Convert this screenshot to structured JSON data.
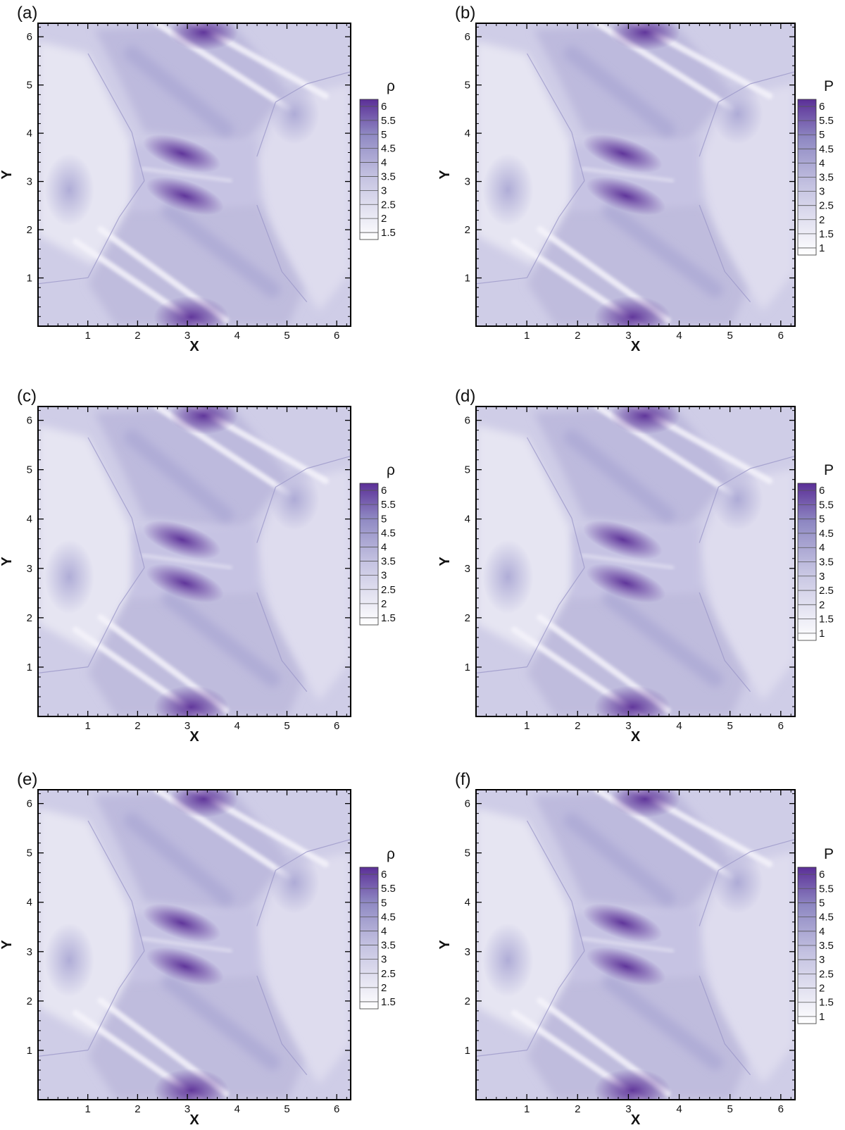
{
  "figure": {
    "panels": [
      {
        "label": "(a)",
        "variable": "ρ"
      },
      {
        "label": "(b)",
        "variable": "P"
      },
      {
        "label": "(c)",
        "variable": "ρ"
      },
      {
        "label": "(d)",
        "variable": "P"
      },
      {
        "label": "(e)",
        "variable": "ρ"
      },
      {
        "label": "(f)",
        "variable": "P"
      }
    ]
  },
  "colors": {
    "low": "#f3f2f9",
    "mid": "#a6a3d2",
    "high": "#5b2f97"
  },
  "chart_data": [
    {
      "type": "heatmap",
      "title": "",
      "panel_label": "(a)",
      "colorbar_title": "ρ",
      "xlabel": "X",
      "ylabel": "Y",
      "xlim": [
        0,
        6.28
      ],
      "ylim": [
        0,
        6.28
      ],
      "x_ticks": [
        1,
        2,
        3,
        4,
        5,
        6
      ],
      "y_ticks": [
        1,
        2,
        3,
        4,
        5,
        6
      ],
      "colorbar_ticks": [
        "1.5",
        "2",
        "2.5",
        "3",
        "3.5",
        "4",
        "4.5",
        "5",
        "5.5",
        "6"
      ],
      "colorbar_range": [
        1.25,
        6.25
      ]
    },
    {
      "type": "heatmap",
      "title": "",
      "panel_label": "(b)",
      "colorbar_title": "P",
      "xlabel": "X",
      "ylabel": "Y",
      "xlim": [
        0,
        6.28
      ],
      "ylim": [
        0,
        6.28
      ],
      "x_ticks": [
        1,
        2,
        3,
        4,
        5,
        6
      ],
      "y_ticks": [
        1,
        2,
        3,
        4,
        5,
        6
      ],
      "colorbar_ticks": [
        "1",
        "1.5",
        "2",
        "2.5",
        "3",
        "3.5",
        "4",
        "4.5",
        "5",
        "5.5",
        "6"
      ],
      "colorbar_range": [
        0.75,
        6.25
      ]
    },
    {
      "type": "heatmap",
      "title": "",
      "panel_label": "(c)",
      "colorbar_title": "ρ",
      "xlabel": "X",
      "ylabel": "Y",
      "xlim": [
        0,
        6.28
      ],
      "ylim": [
        0,
        6.28
      ],
      "x_ticks": [
        1,
        2,
        3,
        4,
        5,
        6
      ],
      "y_ticks": [
        1,
        2,
        3,
        4,
        5,
        6
      ],
      "colorbar_ticks": [
        "1.5",
        "2",
        "2.5",
        "3",
        "3.5",
        "4",
        "4.5",
        "5",
        "5.5",
        "6"
      ],
      "colorbar_range": [
        1.25,
        6.25
      ]
    },
    {
      "type": "heatmap",
      "title": "",
      "panel_label": "(d)",
      "colorbar_title": "P",
      "xlabel": "X",
      "ylabel": "Y",
      "xlim": [
        0,
        6.28
      ],
      "ylim": [
        0,
        6.28
      ],
      "x_ticks": [
        1,
        2,
        3,
        4,
        5,
        6
      ],
      "y_ticks": [
        1,
        2,
        3,
        4,
        5,
        6
      ],
      "colorbar_ticks": [
        "1",
        "1.5",
        "2",
        "2.5",
        "3",
        "3.5",
        "4",
        "4.5",
        "5",
        "5.5",
        "6"
      ],
      "colorbar_range": [
        0.75,
        6.25
      ]
    },
    {
      "type": "heatmap",
      "title": "",
      "panel_label": "(e)",
      "colorbar_title": "ρ",
      "xlabel": "X",
      "ylabel": "Y",
      "xlim": [
        0,
        6.28
      ],
      "ylim": [
        0,
        6.28
      ],
      "x_ticks": [
        1,
        2,
        3,
        4,
        5,
        6
      ],
      "y_ticks": [
        1,
        2,
        3,
        4,
        5,
        6
      ],
      "colorbar_ticks": [
        "1.5",
        "2",
        "2.5",
        "3",
        "3.5",
        "4",
        "4.5",
        "5",
        "5.5",
        "6"
      ],
      "colorbar_range": [
        1.25,
        6.25
      ]
    },
    {
      "type": "heatmap",
      "title": "",
      "panel_label": "(f)",
      "colorbar_title": "P",
      "xlabel": "X",
      "ylabel": "Y",
      "xlim": [
        0,
        6.28
      ],
      "ylim": [
        0,
        6.28
      ],
      "x_ticks": [
        1,
        2,
        3,
        4,
        5,
        6
      ],
      "y_ticks": [
        1,
        2,
        3,
        4,
        5,
        6
      ],
      "colorbar_ticks": [
        "1",
        "1.5",
        "2",
        "2.5",
        "3",
        "3.5",
        "4",
        "4.5",
        "5",
        "5.5",
        "6"
      ],
      "colorbar_range": [
        0.75,
        6.25
      ]
    }
  ]
}
